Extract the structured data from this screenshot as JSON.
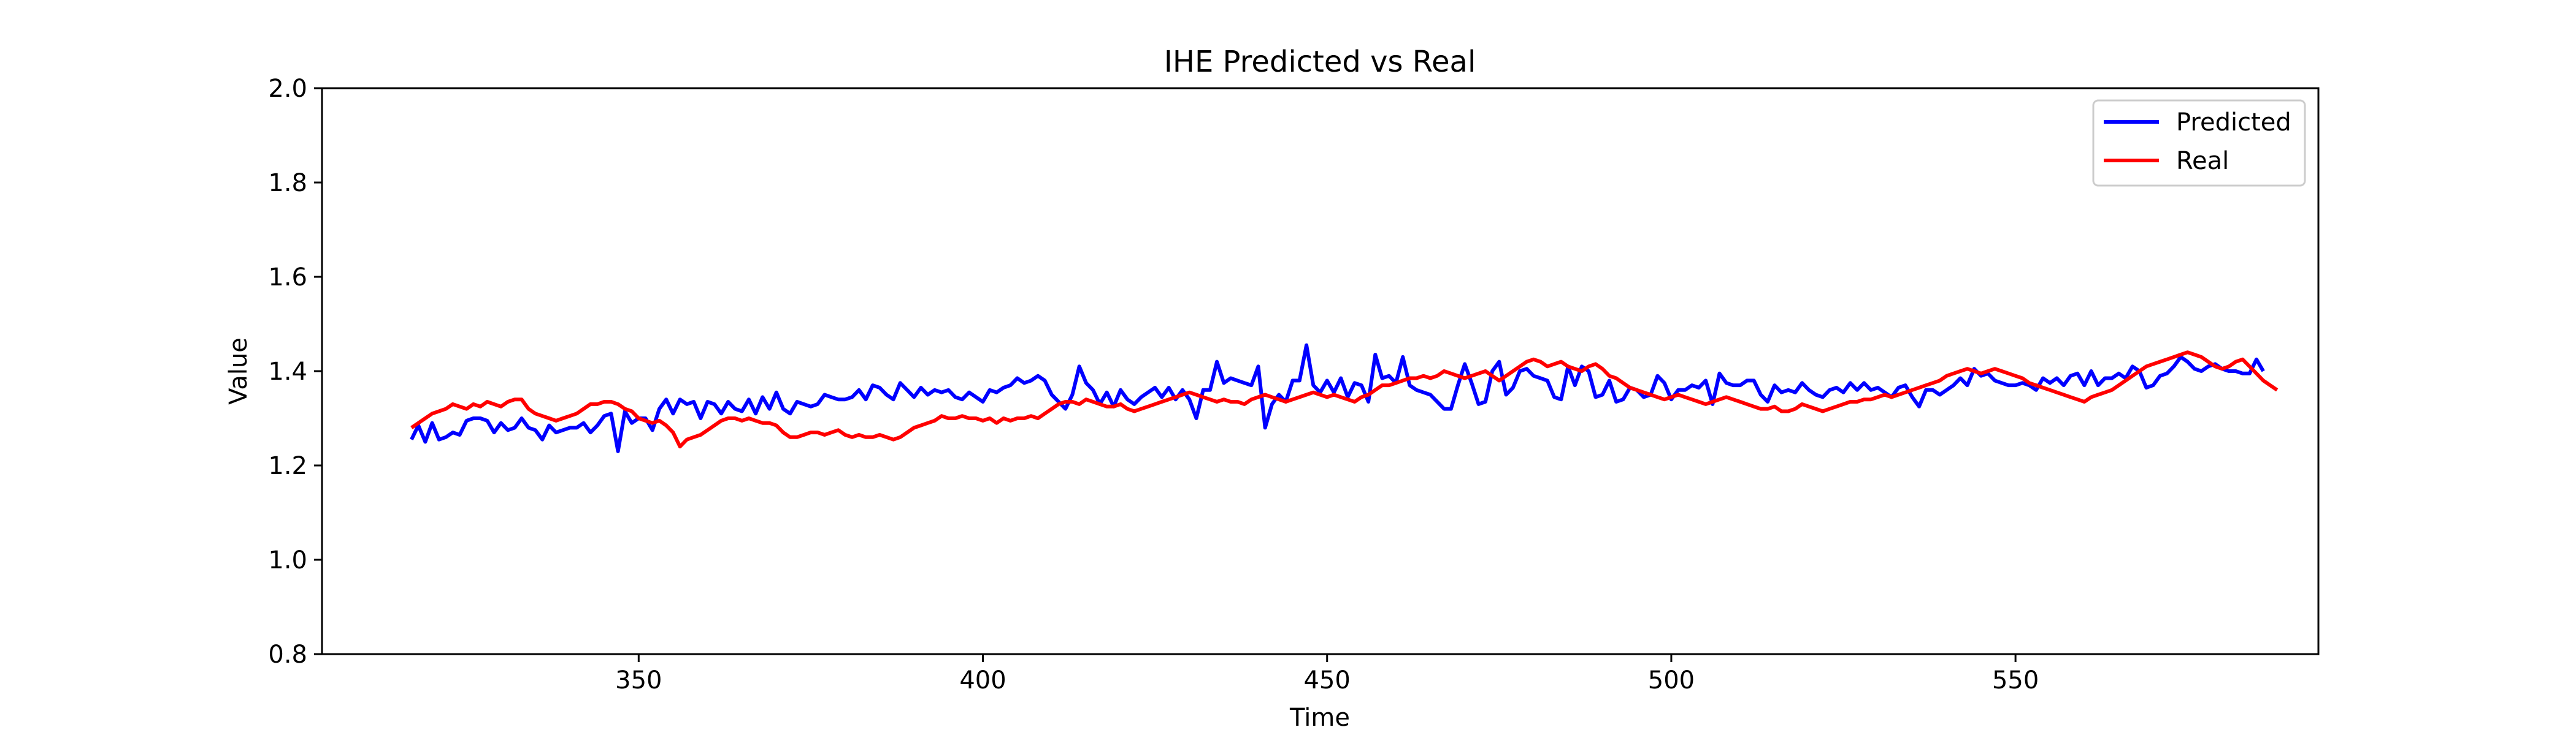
{
  "chart_data": {
    "type": "line",
    "title": "IHE Predicted vs Real",
    "xlabel": "Time",
    "ylabel": "Value",
    "xlim": [
      304,
      594
    ],
    "ylim": [
      0.8,
      2.0
    ],
    "xticks": [
      350,
      400,
      450,
      500,
      550
    ],
    "yticks": [
      0.8,
      1.0,
      1.2,
      1.4,
      1.6,
      1.8,
      2.0
    ],
    "xtick_labels": [
      "350",
      "400",
      "450",
      "500",
      "550"
    ],
    "ytick_labels": [
      "0.8",
      "1.0",
      "1.2",
      "1.4",
      "1.6",
      "1.8",
      "2.0"
    ],
    "grid": false,
    "legend_position": "top-right",
    "x_start": 317,
    "series": [
      {
        "name": "Predicted",
        "color": "#0000ff",
        "values": [
          1.255,
          1.285,
          1.25,
          1.29,
          1.255,
          1.26,
          1.27,
          1.265,
          1.295,
          1.3,
          1.3,
          1.295,
          1.27,
          1.29,
          1.275,
          1.28,
          1.3,
          1.28,
          1.275,
          1.255,
          1.285,
          1.27,
          1.275,
          1.28,
          1.28,
          1.29,
          1.27,
          1.285,
          1.305,
          1.31,
          1.23,
          1.315,
          1.29,
          1.3,
          1.3,
          1.275,
          1.32,
          1.34,
          1.31,
          1.34,
          1.33,
          1.335,
          1.3,
          1.335,
          1.33,
          1.31,
          1.335,
          1.32,
          1.315,
          1.34,
          1.31,
          1.345,
          1.32,
          1.355,
          1.32,
          1.31,
          1.335,
          1.33,
          1.325,
          1.33,
          1.35,
          1.345,
          1.34,
          1.34,
          1.345,
          1.36,
          1.34,
          1.37,
          1.365,
          1.35,
          1.34,
          1.375,
          1.36,
          1.345,
          1.365,
          1.35,
          1.36,
          1.355,
          1.36,
          1.345,
          1.34,
          1.355,
          1.345,
          1.335,
          1.36,
          1.355,
          1.365,
          1.37,
          1.385,
          1.375,
          1.38,
          1.39,
          1.38,
          1.35,
          1.335,
          1.32,
          1.35,
          1.41,
          1.375,
          1.36,
          1.33,
          1.355,
          1.325,
          1.36,
          1.34,
          1.33,
          1.345,
          1.355,
          1.365,
          1.345,
          1.365,
          1.34,
          1.36,
          1.34,
          1.3,
          1.36,
          1.36,
          1.42,
          1.375,
          1.385,
          1.38,
          1.375,
          1.37,
          1.41,
          1.28,
          1.33,
          1.35,
          1.335,
          1.38,
          1.38,
          1.455,
          1.37,
          1.355,
          1.38,
          1.355,
          1.385,
          1.345,
          1.375,
          1.37,
          1.335,
          1.435,
          1.385,
          1.39,
          1.375,
          1.43,
          1.37,
          1.36,
          1.355,
          1.35,
          1.335,
          1.32,
          1.32,
          1.37,
          1.415,
          1.375,
          1.33,
          1.335,
          1.4,
          1.42,
          1.35,
          1.365,
          1.4,
          1.405,
          1.39,
          1.385,
          1.38,
          1.345,
          1.34,
          1.41,
          1.37,
          1.41,
          1.4,
          1.345,
          1.35,
          1.38,
          1.335,
          1.34,
          1.365,
          1.36,
          1.345,
          1.35,
          1.39,
          1.375,
          1.34,
          1.36,
          1.36,
          1.37,
          1.365,
          1.38,
          1.33,
          1.395,
          1.375,
          1.37,
          1.37,
          1.38,
          1.38,
          1.35,
          1.335,
          1.37,
          1.355,
          1.36,
          1.355,
          1.375,
          1.36,
          1.35,
          1.345,
          1.36,
          1.365,
          1.355,
          1.375,
          1.36,
          1.375,
          1.36,
          1.365,
          1.355,
          1.345,
          1.365,
          1.37,
          1.345,
          1.325,
          1.36,
          1.36,
          1.35,
          1.36,
          1.37,
          1.385,
          1.37,
          1.405,
          1.39,
          1.395,
          1.38,
          1.375,
          1.37,
          1.37,
          1.375,
          1.37,
          1.36,
          1.385,
          1.375,
          1.385,
          1.37,
          1.39,
          1.395,
          1.37,
          1.4,
          1.37,
          1.385,
          1.385,
          1.395,
          1.385,
          1.41,
          1.4,
          1.365,
          1.37,
          1.39,
          1.395,
          1.41,
          1.43,
          1.42,
          1.405,
          1.4,
          1.41,
          1.415,
          1.405,
          1.4,
          1.4,
          1.395,
          1.395,
          1.425,
          1.4
        ]
      },
      {
        "name": "Real",
        "color": "#ff0000",
        "values": [
          1.28,
          1.29,
          1.3,
          1.31,
          1.315,
          1.32,
          1.33,
          1.325,
          1.32,
          1.33,
          1.325,
          1.335,
          1.33,
          1.325,
          1.335,
          1.34,
          1.34,
          1.32,
          1.31,
          1.305,
          1.3,
          1.295,
          1.3,
          1.305,
          1.31,
          1.32,
          1.33,
          1.33,
          1.335,
          1.335,
          1.33,
          1.32,
          1.315,
          1.3,
          1.295,
          1.29,
          1.295,
          1.285,
          1.27,
          1.24,
          1.255,
          1.26,
          1.265,
          1.275,
          1.285,
          1.295,
          1.3,
          1.3,
          1.295,
          1.3,
          1.295,
          1.29,
          1.29,
          1.285,
          1.27,
          1.26,
          1.26,
          1.265,
          1.27,
          1.27,
          1.265,
          1.27,
          1.275,
          1.265,
          1.26,
          1.265,
          1.26,
          1.26,
          1.265,
          1.26,
          1.255,
          1.26,
          1.27,
          1.28,
          1.285,
          1.29,
          1.295,
          1.305,
          1.3,
          1.3,
          1.305,
          1.3,
          1.3,
          1.295,
          1.3,
          1.29,
          1.3,
          1.295,
          1.3,
          1.3,
          1.305,
          1.3,
          1.31,
          1.32,
          1.33,
          1.335,
          1.335,
          1.33,
          1.34,
          1.335,
          1.33,
          1.325,
          1.325,
          1.33,
          1.32,
          1.315,
          1.32,
          1.325,
          1.33,
          1.335,
          1.34,
          1.345,
          1.35,
          1.355,
          1.35,
          1.345,
          1.34,
          1.335,
          1.34,
          1.335,
          1.335,
          1.33,
          1.34,
          1.345,
          1.35,
          1.345,
          1.34,
          1.335,
          1.34,
          1.345,
          1.35,
          1.355,
          1.35,
          1.345,
          1.35,
          1.345,
          1.34,
          1.335,
          1.345,
          1.35,
          1.36,
          1.37,
          1.37,
          1.375,
          1.38,
          1.385,
          1.385,
          1.39,
          1.385,
          1.39,
          1.4,
          1.395,
          1.39,
          1.385,
          1.39,
          1.395,
          1.4,
          1.39,
          1.38,
          1.39,
          1.4,
          1.41,
          1.42,
          1.425,
          1.42,
          1.41,
          1.415,
          1.42,
          1.41,
          1.405,
          1.4,
          1.41,
          1.415,
          1.405,
          1.39,
          1.385,
          1.375,
          1.365,
          1.36,
          1.355,
          1.35,
          1.345,
          1.34,
          1.345,
          1.35,
          1.345,
          1.34,
          1.335,
          1.33,
          1.335,
          1.34,
          1.345,
          1.34,
          1.335,
          1.33,
          1.325,
          1.32,
          1.32,
          1.325,
          1.315,
          1.315,
          1.32,
          1.33,
          1.325,
          1.32,
          1.315,
          1.32,
          1.325,
          1.33,
          1.335,
          1.335,
          1.34,
          1.34,
          1.345,
          1.35,
          1.345,
          1.35,
          1.355,
          1.36,
          1.365,
          1.37,
          1.375,
          1.38,
          1.39,
          1.395,
          1.4,
          1.405,
          1.4,
          1.395,
          1.4,
          1.405,
          1.4,
          1.395,
          1.39,
          1.385,
          1.375,
          1.37,
          1.365,
          1.36,
          1.355,
          1.35,
          1.345,
          1.34,
          1.335,
          1.345,
          1.35,
          1.355,
          1.36,
          1.37,
          1.38,
          1.39,
          1.4,
          1.41,
          1.415,
          1.42,
          1.425,
          1.43,
          1.435,
          1.44,
          1.435,
          1.43,
          1.42,
          1.41,
          1.405,
          1.41,
          1.42,
          1.425,
          1.41,
          1.395,
          1.38,
          1.37,
          1.36
        ]
      }
    ]
  }
}
